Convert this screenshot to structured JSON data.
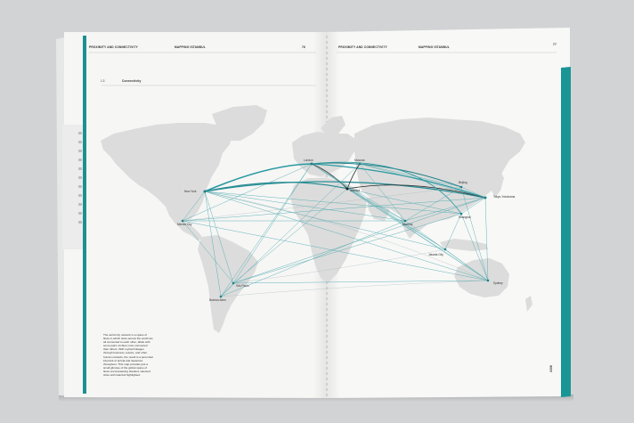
{
  "colors": {
    "background": "#d2d3d5",
    "paper": "#f7f7f6",
    "teal_accent": "#1f8f90",
    "map_land": "#dcdcdc",
    "routes": "#2b9aa0"
  },
  "left_page": {
    "header_left": "PROXIMITY AND CONNECTIVITY",
    "header_right": "MAPPING ISTANBUL",
    "page_number": "76",
    "section_number": "1.3",
    "section_title": "Connectivity",
    "caption": "The world city network is a space of flows in which cities across the world are all connected to each other, albeit with some pairs of cities more connected than others. With myriad linkages through business, leisure, and other human contacts, the result is a perennial interlock of arrival and departure throughout. This map provides just a small glimpse of the global space of flows encompassing Istanbul; selected cities with Istanbul highlighted."
  },
  "right_page": {
    "header_left": "PROXIMITY AND CONNECTIVITY",
    "header_right": "MAPPING ISTANBUL",
    "page_number": "77",
    "side_mark": "2008"
  },
  "cities": {
    "new_york": "New York",
    "mexico_city": "Mexico City",
    "sao_paulo": "São Paulo",
    "buenos_aires": "Buenos Aires",
    "london": "London",
    "moscow": "Moscow",
    "istanbul": "Istanbul",
    "mumbai": "Mumbai",
    "beijing": "Beijing",
    "shanghai": "Shanghai",
    "tokyo": "Tokyo-Yokohama",
    "jakarta": "Jakarta City",
    "sydney": "Sydney"
  }
}
